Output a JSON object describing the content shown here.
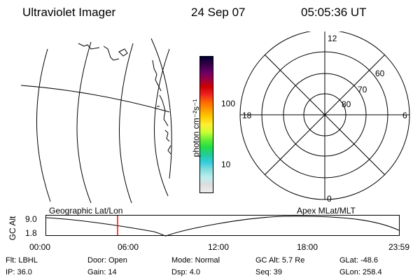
{
  "header": {
    "instrument": "Ultraviolet Imager",
    "date": "24 Sep 07",
    "time": "05:05:36 UT"
  },
  "colorbar": {
    "unit_label": "photon cm⁻²s⁻¹",
    "tick_labels": [
      "100",
      "10"
    ],
    "colors": [
      "#000033",
      "#330044",
      "#660066",
      "#990044",
      "#cc0000",
      "#ee2222",
      "#ff6600",
      "#ff9900",
      "#ffcc00",
      "#ffee33",
      "#ccff33",
      "#66ee33",
      "#22dd44",
      "#22cc99",
      "#33ccdd",
      "#88dddd",
      "#bbeeee",
      "#dddddd",
      "#eeeeee"
    ]
  },
  "polar": {
    "mlt_labels": {
      "top": "12",
      "left": "18",
      "right": "6",
      "bottom": "0"
    },
    "lat_labels": [
      "60",
      "70",
      "80"
    ]
  },
  "timeline": {
    "left_label": "Geographic Lat/Lon",
    "right_label": "Apex MLat/MLT",
    "y_axis_label": "GC Alt",
    "y_ticks": [
      "9.0",
      "1.8"
    ],
    "x_ticks": [
      "00:00",
      "06:00",
      "12:00",
      "18:00",
      "23:59"
    ],
    "marker_color": "#ff0000"
  },
  "info": {
    "row1": [
      {
        "key": "Flt:",
        "value": "LBHL"
      },
      {
        "key": "Door:",
        "value": "Open"
      },
      {
        "key": "Mode:",
        "value": "Normal"
      },
      {
        "key": "GC Alt:",
        "value": "5.7 Re"
      },
      {
        "key": "GLat:",
        "value": "-48.6"
      }
    ],
    "row2": [
      {
        "key": "IP:",
        "value": "36.0"
      },
      {
        "key": "Gain:",
        "value": "14"
      },
      {
        "key": "Dsp:",
        "value": "4.0"
      },
      {
        "key": "Seq:",
        "value": "39"
      },
      {
        "key": "GLon:",
        "value": "258.4"
      }
    ]
  }
}
